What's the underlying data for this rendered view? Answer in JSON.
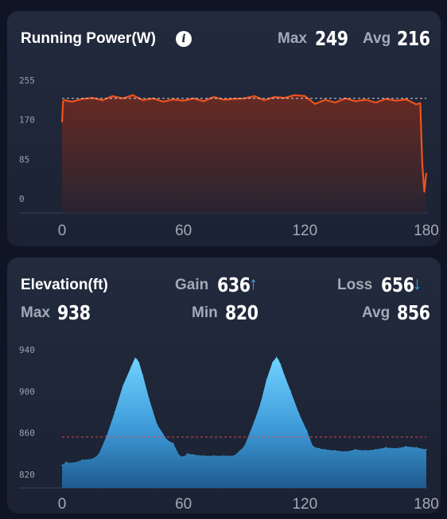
{
  "power": {
    "title": "Running Power(W)",
    "info_icon": "i",
    "max_label": "Max",
    "max_value": "249",
    "avg_label": "Avg",
    "avg_value": "216",
    "line_color": "#f0521d",
    "avg_line_color": "#cfd3dc"
  },
  "elevation": {
    "title": "Elevation(ft)",
    "gain_label": "Gain",
    "gain_value": "636",
    "gain_arrow": "↑",
    "loss_label": "Loss",
    "loss_value": "656",
    "loss_arrow": "↓",
    "max_label": "Max",
    "max_value": "938",
    "min_label": "Min",
    "min_value": "820",
    "avg_label": "Avg",
    "avg_value": "856",
    "fill_color": "#4fc3f7",
    "avg_line_color": "#e0474c"
  },
  "chart_data": [
    {
      "type": "line",
      "title": "Running Power(W)",
      "x_ticks": [
        "0",
        "60",
        "120",
        "180"
      ],
      "y_ticks": [
        "255",
        "170",
        "85",
        "0"
      ],
      "xlim": [
        0,
        180
      ],
      "ylim": [
        0,
        255
      ],
      "avg": 216,
      "x": [
        0,
        0.5,
        1,
        5,
        10,
        15,
        20,
        25,
        30,
        35,
        40,
        45,
        50,
        55,
        60,
        65,
        70,
        75,
        80,
        85,
        90,
        95,
        100,
        105,
        110,
        115,
        120,
        125,
        130,
        135,
        140,
        145,
        150,
        155,
        160,
        165,
        170,
        175,
        177,
        178,
        179,
        180
      ],
      "values": [
        165,
        210,
        212,
        209,
        215,
        217,
        212,
        221,
        216,
        223,
        212,
        216,
        209,
        214,
        211,
        216,
        210,
        219,
        213,
        215,
        216,
        221,
        212,
        219,
        217,
        223,
        221,
        204,
        213,
        207,
        216,
        210,
        213,
        207,
        215,
        211,
        214,
        203,
        206,
        75,
        15,
        55
      ]
    },
    {
      "type": "area",
      "title": "Elevation(ft)",
      "x_ticks": [
        "0",
        "60",
        "120",
        "180"
      ],
      "y_ticks": [
        "940",
        "900",
        "860",
        "820"
      ],
      "xlim": [
        0,
        180
      ],
      "ylim": [
        820,
        940
      ],
      "avg": 856,
      "x": [
        0,
        2,
        5,
        10,
        15,
        18,
        22,
        26,
        30,
        34,
        36,
        37,
        38,
        40,
        43,
        47,
        52,
        55,
        58,
        60,
        62,
        65,
        70,
        75,
        80,
        85,
        90,
        95,
        98,
        101,
        104,
        106,
        107,
        108,
        110,
        113,
        117,
        121,
        124,
        127,
        130,
        135,
        140,
        145,
        150,
        155,
        160,
        165,
        170,
        175,
        180
      ],
      "values": [
        829,
        832,
        831,
        834,
        835,
        839,
        857,
        880,
        905,
        923,
        932,
        931,
        928,
        915,
        893,
        868,
        853,
        850,
        838,
        837,
        840,
        839,
        838,
        838,
        838,
        838,
        847,
        871,
        888,
        911,
        928,
        933,
        930,
        926,
        915,
        900,
        879,
        862,
        847,
        845,
        844,
        843,
        842,
        844,
        843,
        844,
        846,
        845,
        847,
        846,
        844
      ]
    }
  ]
}
